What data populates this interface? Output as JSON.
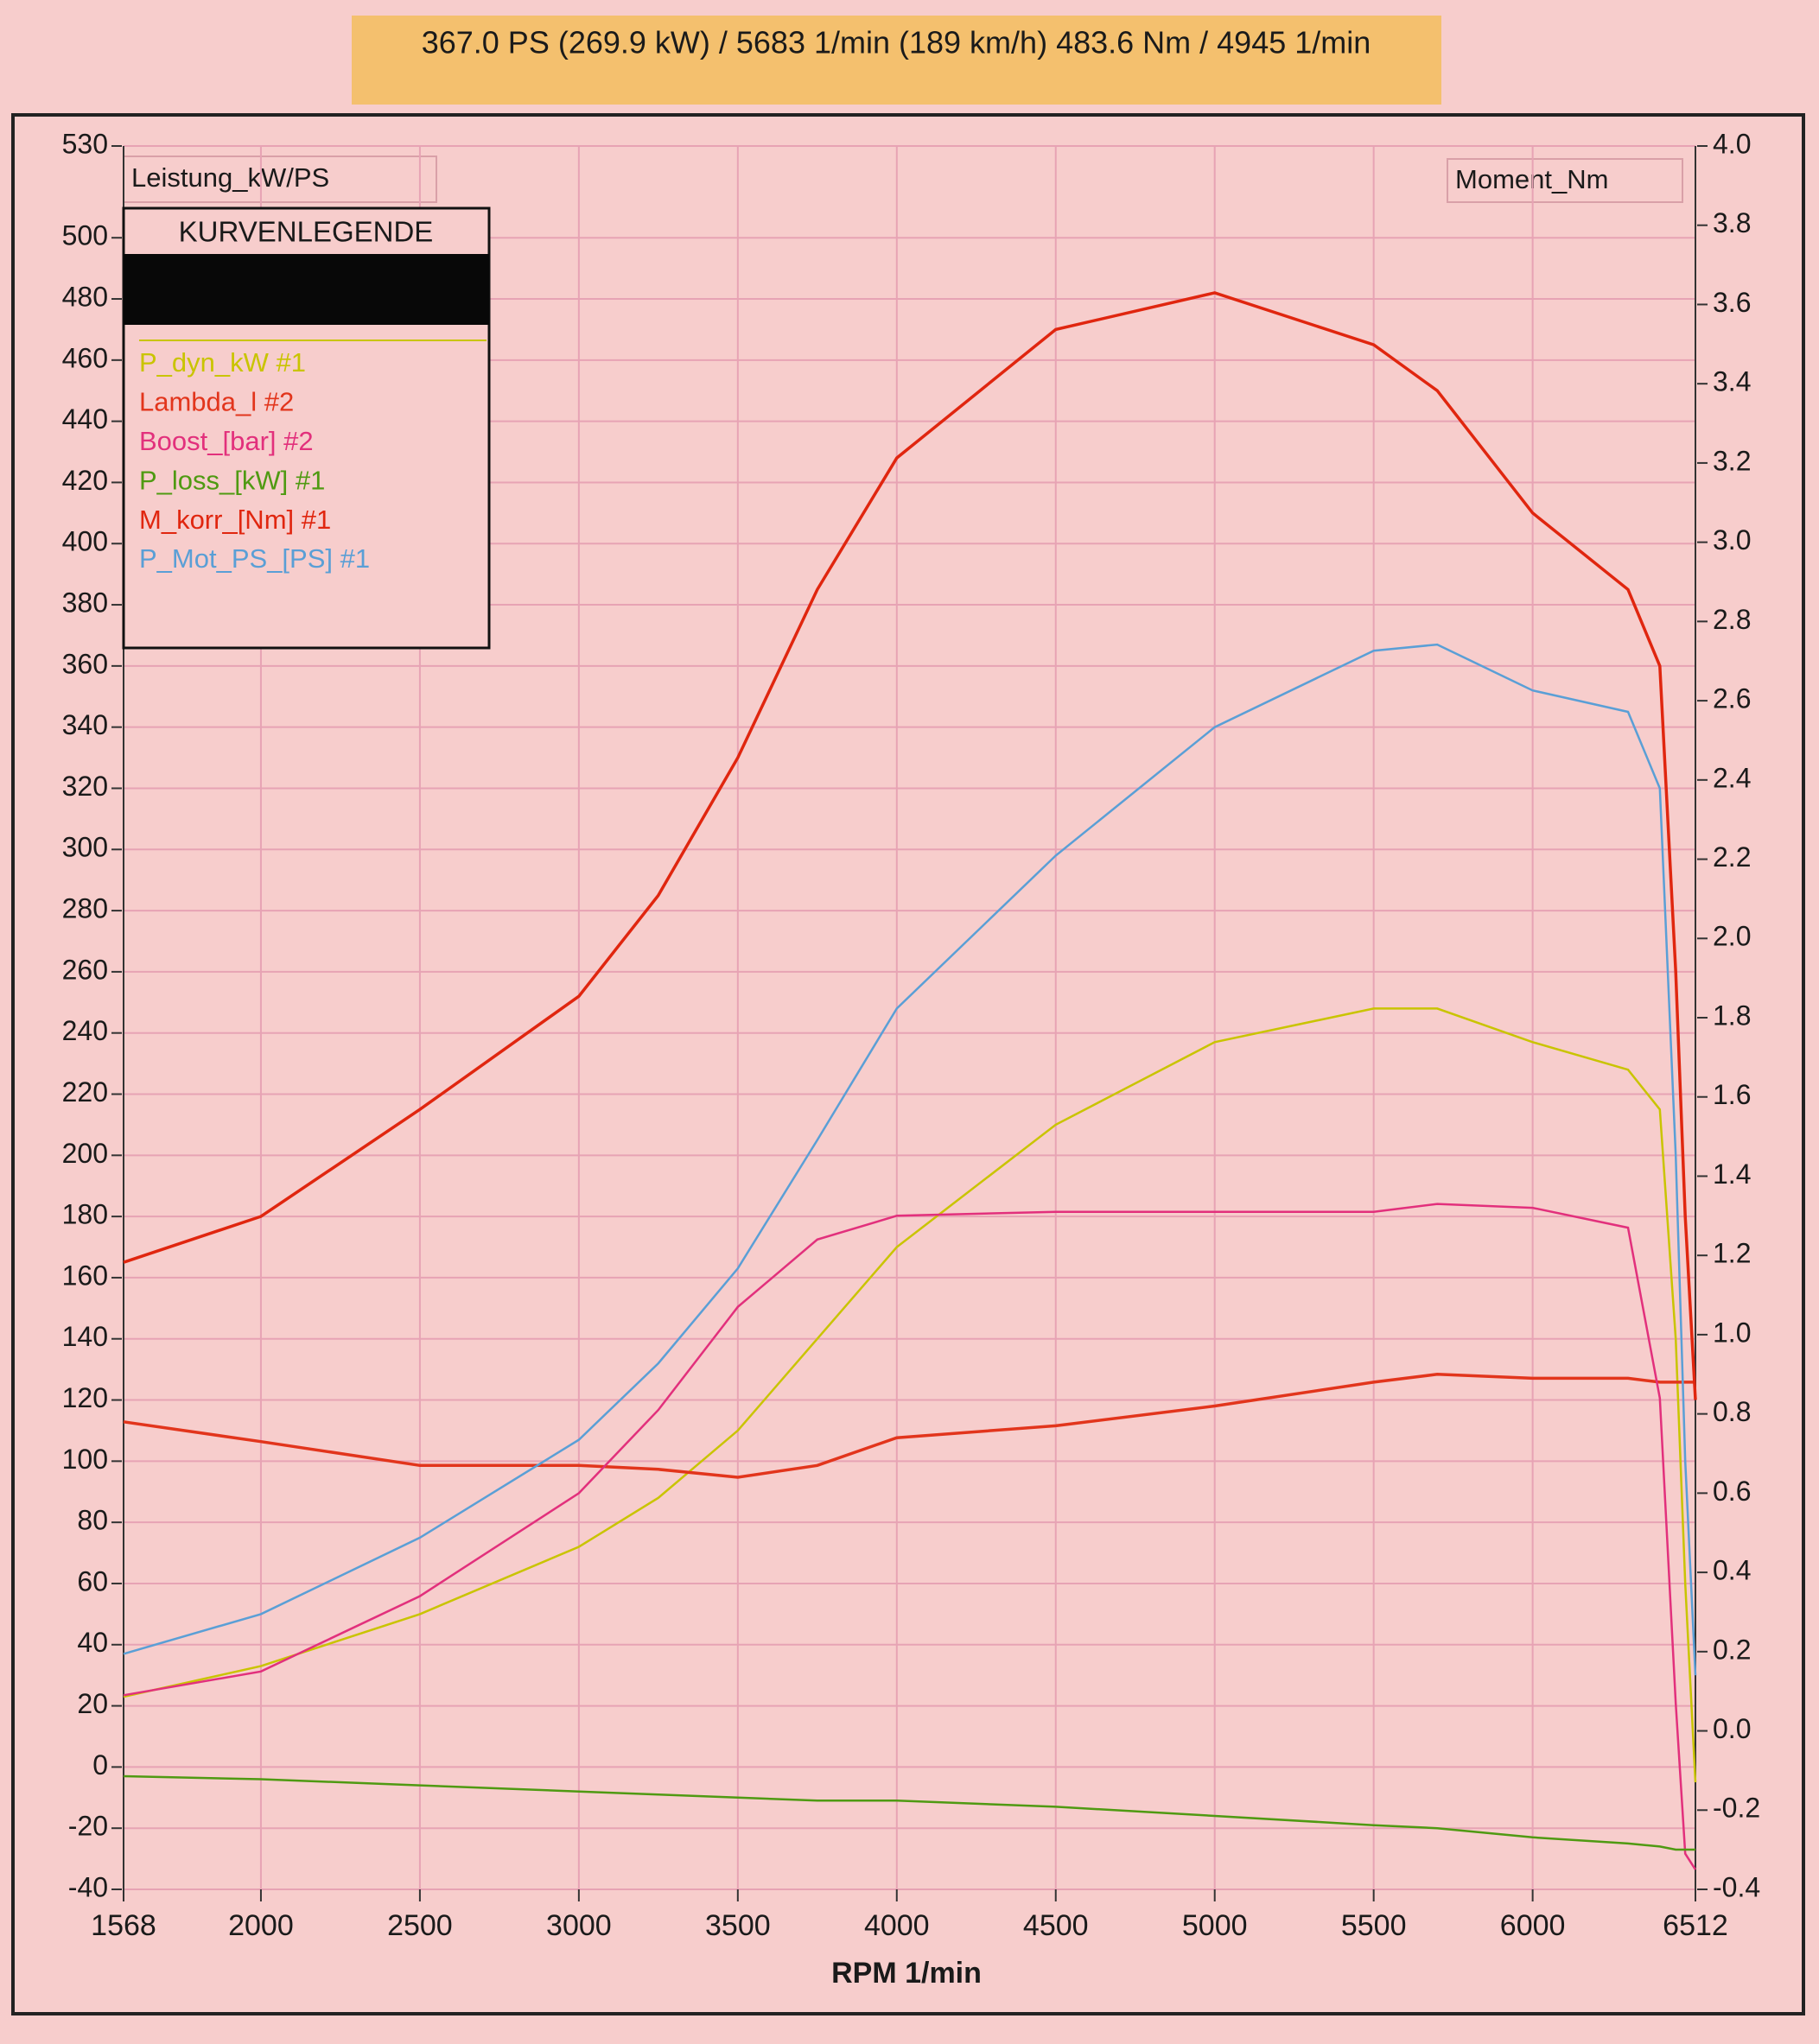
{
  "chart_data": {
    "type": "line",
    "header": "367.0 PS  (269.9 kW) / 5683 1/min (189 km/h)     483.6 Nm / 4945 1/min",
    "y_label": "Leistung_kW/PS",
    "y2_label": "Moment_Nm",
    "x_label": "RPM  1/min",
    "legend_title": "KURVENLEGENDE",
    "legend": "upper left",
    "grid": true,
    "x": [
      1568,
      2000,
      2500,
      3000,
      3250,
      3500,
      3750,
      4000,
      4500,
      5000,
      5500,
      5700,
      6000,
      6300,
      6400,
      6450,
      6480,
      6512
    ],
    "xlim": [
      1568,
      6512
    ],
    "xticks": [
      1568,
      2000,
      2500,
      3000,
      3500,
      4000,
      4500,
      5000,
      5500,
      6000,
      6512
    ],
    "ylim": [
      -40,
      530
    ],
    "yticks": [
      -40,
      -20,
      0,
      20,
      40,
      60,
      80,
      100,
      120,
      140,
      160,
      180,
      200,
      220,
      240,
      260,
      280,
      300,
      320,
      340,
      360,
      380,
      400,
      420,
      440,
      460,
      480,
      500,
      530
    ],
    "y2lim": [
      -0.4,
      4.0
    ],
    "y2ticks": [
      {
        "value": 4.0,
        "label": "4.0"
      },
      {
        "value": 3.8,
        "label": "3.8"
      },
      {
        "value": 3.6,
        "label": "3.6"
      },
      {
        "value": 3.4,
        "label": "3.4"
      },
      {
        "value": 3.2,
        "label": "3.2"
      },
      {
        "value": 3.0,
        "label": "3.0"
      },
      {
        "value": 2.8,
        "label": "2.8"
      },
      {
        "value": 2.6,
        "label": "2.6"
      },
      {
        "value": 2.4,
        "label": "2.4"
      },
      {
        "value": 2.2,
        "label": "2.2"
      },
      {
        "value": 2.0,
        "label": "2.0"
      },
      {
        "value": 1.8,
        "label": "1.8"
      },
      {
        "value": 1.6,
        "label": "1.6"
      },
      {
        "value": 1.4,
        "label": "1.4"
      },
      {
        "value": 1.2,
        "label": "1.2"
      },
      {
        "value": 1.0,
        "label": "1.0"
      },
      {
        "value": 0.8,
        "label": "0.8"
      },
      {
        "value": 0.6,
        "label": "0.6"
      },
      {
        "value": 0.4,
        "label": "0.4"
      },
      {
        "value": 0.2,
        "label": "0.2"
      },
      {
        "value": 0.0,
        "label": "0.0"
      },
      {
        "value": -0.2,
        "label": "-0.2"
      },
      {
        "value": -0.4,
        "label": "-0.4"
      }
    ],
    "series": [
      {
        "name": "P_dyn_kW #1",
        "color": "#c9c400",
        "values": [
          23,
          33,
          50,
          72,
          88,
          110,
          140,
          170,
          210,
          237,
          248,
          248,
          237,
          228,
          215,
          140,
          60,
          -5
        ]
      },
      {
        "name": "Lambda_l #2",
        "color": "#e2351c",
        "axis": "y2",
        "values": [
          0.78,
          0.73,
          0.67,
          0.67,
          0.66,
          0.64,
          0.67,
          0.74,
          0.77,
          0.82,
          0.88,
          0.9,
          0.89,
          0.89,
          0.88,
          0.88,
          0.88,
          0.88
        ]
      },
      {
        "name": "Boost_[bar] #2",
        "color": "#e2307c",
        "axis": "y2",
        "values": [
          0.09,
          0.15,
          0.34,
          0.6,
          0.81,
          1.07,
          1.24,
          1.3,
          1.31,
          1.31,
          1.31,
          1.33,
          1.32,
          1.27,
          0.84,
          0.07,
          -0.31,
          -0.35
        ]
      },
      {
        "name": "P_loss_[kW] #1",
        "color": "#4f9a12",
        "values": [
          -3,
          -4,
          -6,
          -8,
          -9,
          -10,
          -11,
          -11,
          -13,
          -16,
          -19,
          -20,
          -23,
          -25,
          -26,
          -27,
          -27,
          -27
        ]
      },
      {
        "name": "M_korr_[Nm] #1",
        "color": "#e0260f",
        "values": [
          165,
          180,
          215,
          252,
          285,
          330,
          385,
          428,
          470,
          482,
          465,
          450,
          410,
          385,
          360,
          260,
          180,
          120
        ]
      },
      {
        "name": "P_Mot_PS_[PS] #1",
        "color": "#5a9fd6",
        "values": [
          37,
          50,
          75,
          107,
          132,
          163,
          205,
          248,
          298,
          340,
          365,
          367,
          352,
          345,
          320,
          200,
          100,
          30
        ]
      }
    ]
  }
}
